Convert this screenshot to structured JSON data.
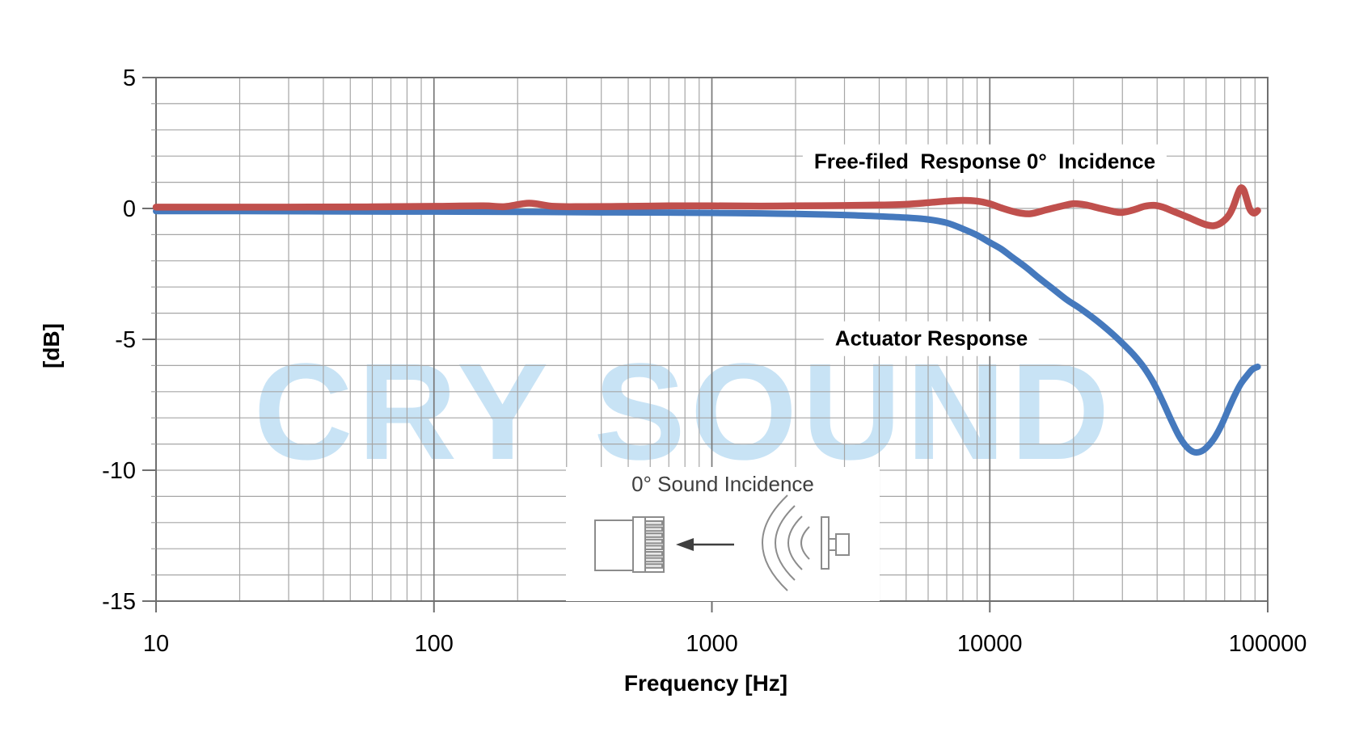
{
  "page": {
    "background": "#ffffff"
  },
  "watermark": {
    "text": "CRY SOUND",
    "color": "#c8e3f5"
  },
  "colors": {
    "grid_minor": "#a6a6a6",
    "grid_major": "#787878",
    "axis_border": "#6f6f6f",
    "red_curve": "#c0504d",
    "blue_curve": "#4579bd",
    "inset_icon": "#8c8c8c",
    "arrow": "#3f3f3f"
  },
  "chart_data": {
    "type": "line",
    "title": "",
    "xlabel": "Frequency [Hz]",
    "ylabel": "[dB]",
    "x_scale": "log",
    "xlim": [
      10,
      100000
    ],
    "ylim": [
      -15,
      5
    ],
    "x_ticks": [
      10,
      100,
      1000,
      10000,
      100000
    ],
    "x_tick_labels": [
      "10",
      "100",
      "1000",
      "10000",
      "100000"
    ],
    "y_ticks": [
      5,
      0,
      -5,
      -10,
      -15
    ],
    "y_tick_labels": [
      "5",
      "0",
      "-5",
      "-10",
      "-15"
    ],
    "y_minor_step": 1,
    "grid": true,
    "legend_position": "none",
    "series": [
      {
        "name": "Free-filed Response 0° Incidence",
        "color": "#c0504d",
        "points": [
          [
            10,
            0.05
          ],
          [
            30,
            0.05
          ],
          [
            60,
            0.06
          ],
          [
            100,
            0.08
          ],
          [
            150,
            0.1
          ],
          [
            180,
            0.07
          ],
          [
            220,
            0.2
          ],
          [
            270,
            0.08
          ],
          [
            350,
            0.07
          ],
          [
            500,
            0.08
          ],
          [
            700,
            0.1
          ],
          [
            1000,
            0.1
          ],
          [
            1500,
            0.09
          ],
          [
            2000,
            0.1
          ],
          [
            3000,
            0.11
          ],
          [
            4000,
            0.13
          ],
          [
            5000,
            0.16
          ],
          [
            6000,
            0.22
          ],
          [
            7000,
            0.28
          ],
          [
            8000,
            0.31
          ],
          [
            9000,
            0.28
          ],
          [
            10000,
            0.18
          ],
          [
            11000,
            0.02
          ],
          [
            12500,
            -0.15
          ],
          [
            14000,
            -0.2
          ],
          [
            16000,
            -0.05
          ],
          [
            18000,
            0.08
          ],
          [
            20000,
            0.18
          ],
          [
            22000,
            0.14
          ],
          [
            25000,
            0.0
          ],
          [
            28000,
            -0.12
          ],
          [
            30000,
            -0.15
          ],
          [
            33000,
            -0.05
          ],
          [
            36000,
            0.08
          ],
          [
            39000,
            0.12
          ],
          [
            42000,
            0.05
          ],
          [
            45000,
            -0.08
          ],
          [
            48000,
            -0.2
          ],
          [
            52000,
            -0.35
          ],
          [
            56000,
            -0.5
          ],
          [
            60000,
            -0.62
          ],
          [
            64000,
            -0.66
          ],
          [
            68000,
            -0.55
          ],
          [
            72000,
            -0.3
          ],
          [
            75000,
            0.05
          ],
          [
            78000,
            0.55
          ],
          [
            80000,
            0.78
          ],
          [
            82000,
            0.7
          ],
          [
            84000,
            0.35
          ],
          [
            86000,
            0.0
          ],
          [
            88000,
            -0.15
          ],
          [
            90000,
            -0.17
          ],
          [
            92000,
            -0.08
          ]
        ]
      },
      {
        "name": "Actuator Response",
        "color": "#4579bd",
        "points": [
          [
            10,
            -0.1
          ],
          [
            20,
            -0.1
          ],
          [
            40,
            -0.11
          ],
          [
            70,
            -0.12
          ],
          [
            100,
            -0.12
          ],
          [
            200,
            -0.13
          ],
          [
            400,
            -0.15
          ],
          [
            700,
            -0.16
          ],
          [
            1000,
            -0.17
          ],
          [
            1500,
            -0.19
          ],
          [
            2000,
            -0.21
          ],
          [
            3000,
            -0.25
          ],
          [
            4000,
            -0.3
          ],
          [
            5000,
            -0.35
          ],
          [
            6000,
            -0.42
          ],
          [
            7000,
            -0.55
          ],
          [
            8000,
            -0.78
          ],
          [
            9000,
            -1.02
          ],
          [
            10000,
            -1.3
          ],
          [
            11000,
            -1.55
          ],
          [
            12000,
            -1.85
          ],
          [
            13500,
            -2.25
          ],
          [
            15000,
            -2.65
          ],
          [
            17000,
            -3.1
          ],
          [
            19000,
            -3.5
          ],
          [
            21000,
            -3.8
          ],
          [
            24000,
            -4.25
          ],
          [
            27000,
            -4.7
          ],
          [
            30000,
            -5.15
          ],
          [
            33000,
            -5.6
          ],
          [
            36000,
            -6.1
          ],
          [
            39000,
            -6.7
          ],
          [
            42000,
            -7.4
          ],
          [
            45000,
            -8.1
          ],
          [
            48000,
            -8.7
          ],
          [
            51000,
            -9.1
          ],
          [
            54000,
            -9.3
          ],
          [
            57000,
            -9.3
          ],
          [
            60000,
            -9.15
          ],
          [
            64000,
            -8.8
          ],
          [
            68000,
            -8.3
          ],
          [
            72000,
            -7.7
          ],
          [
            76000,
            -7.15
          ],
          [
            80000,
            -6.7
          ],
          [
            84000,
            -6.4
          ],
          [
            88000,
            -6.15
          ],
          [
            92000,
            -6.05
          ]
        ]
      }
    ],
    "annotations": [
      {
        "text": "Free-filed  Response 0°  Incidence"
      },
      {
        "text": "Actuator Response"
      }
    ]
  },
  "inset": {
    "title": "0° Sound Incidence"
  }
}
